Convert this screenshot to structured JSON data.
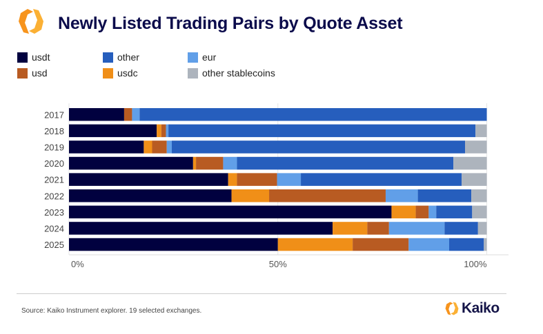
{
  "header": {
    "title": "Newly Listed Trading Pairs by Quote Asset"
  },
  "footer": {
    "source": "Source: Kaiko Instrument explorer. 19 selected exchanges.",
    "brand": "Kaiko"
  },
  "chart_data": {
    "type": "bar",
    "orientation": "horizontal",
    "stacked": true,
    "title": "Newly Listed Trading Pairs by Quote Asset",
    "xlabel": "",
    "ylabel": "",
    "xlim": [
      0,
      100
    ],
    "x_ticks": [
      "0%",
      "50%",
      "100%"
    ],
    "legend_placement": "top-left",
    "categories": [
      "2017",
      "2018",
      "2019",
      "2020",
      "2021",
      "2022",
      "2023",
      "2024",
      "2025"
    ],
    "series": [
      {
        "name": "usdt",
        "color": "#01013f",
        "values": [
          13.2,
          21.0,
          17.9,
          29.7,
          38.1,
          38.9,
          77.2,
          63.1,
          50.0
        ]
      },
      {
        "name": "usdc",
        "color": "#f08f18",
        "values": [
          0,
          1.1,
          2.0,
          0.7,
          2.1,
          9.0,
          5.8,
          8.3,
          17.9
        ]
      },
      {
        "name": "usd",
        "color": "#b85b22",
        "values": [
          1.9,
          1.1,
          3.5,
          6.5,
          9.6,
          27.9,
          3.1,
          5.2,
          13.4
        ]
      },
      {
        "name": "eur",
        "color": "#619fe8",
        "values": [
          1.8,
          0.6,
          1.2,
          3.3,
          5.7,
          7.7,
          1.8,
          13.3,
          9.7
        ]
      },
      {
        "name": "other",
        "color": "#265ebd",
        "values": [
          83.1,
          73.5,
          70.2,
          51.8,
          38.5,
          12.8,
          8.6,
          8.0,
          8.3
        ]
      },
      {
        "name": "other stablecoins",
        "color": "#adb4bd",
        "values": [
          0,
          2.7,
          5.2,
          8.0,
          6.0,
          3.7,
          3.5,
          2.1,
          0.7
        ]
      }
    ]
  }
}
